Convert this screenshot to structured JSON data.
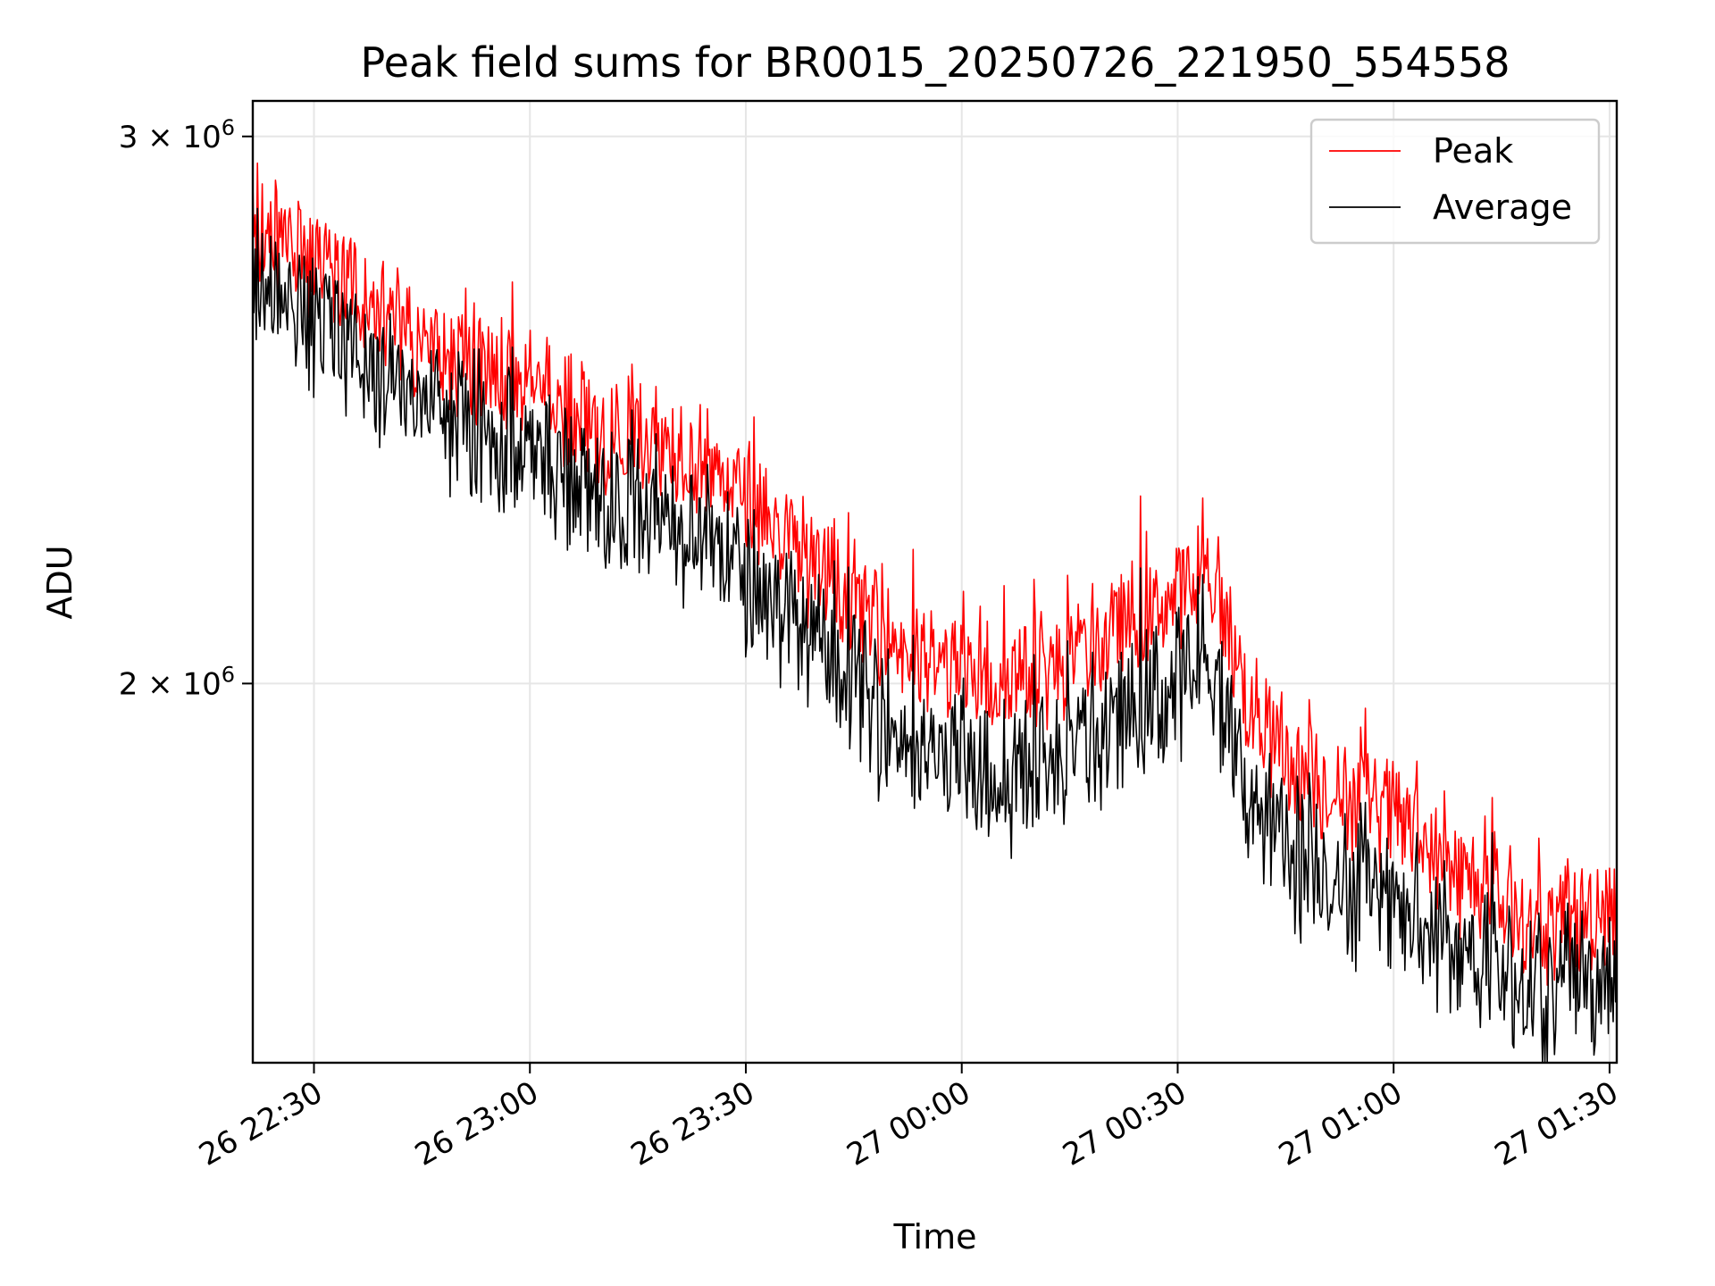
{
  "chart_data": {
    "type": "line",
    "title": "Peak field sums for BR0015_20250726_221950_554558",
    "xlabel": "Time",
    "ylabel": "ADU",
    "x_scale": "time",
    "y_scale": "log",
    "xlim": [
      "2025-07-26 22:21:30",
      "2025-07-27 01:31:00"
    ],
    "ylim": [
      1510000,
      3080000
    ],
    "grid": true,
    "legend": {
      "placement": "top-right",
      "entries": [
        "Peak",
        "Average"
      ]
    },
    "x_ticks": [
      {
        "value": "2025-07-26 22:30",
        "label": "26 22:30"
      },
      {
        "value": "2025-07-26 23:00",
        "label": "26 23:00"
      },
      {
        "value": "2025-07-26 23:30",
        "label": "26 23:30"
      },
      {
        "value": "2025-07-27 00:00",
        "label": "27 00:00"
      },
      {
        "value": "2025-07-27 00:30",
        "label": "27 00:30"
      },
      {
        "value": "2025-07-27 01:00",
        "label": "27 01:00"
      },
      {
        "value": "2025-07-27 01:30",
        "label": "27 01:30"
      }
    ],
    "y_ticks": [
      {
        "value": 2000000,
        "mantissa": "2",
        "exponent": "6"
      },
      {
        "value": 3000000,
        "mantissa": "3",
        "exponent": "6"
      }
    ],
    "x": [
      "2025-07-26 22:21:30",
      "2025-07-26 22:25",
      "2025-07-26 22:30",
      "2025-07-26 22:35",
      "2025-07-26 22:40",
      "2025-07-26 22:45",
      "2025-07-26 22:50",
      "2025-07-26 22:55",
      "2025-07-26 23:00",
      "2025-07-26 23:05",
      "2025-07-26 23:10",
      "2025-07-26 23:15",
      "2025-07-26 23:20",
      "2025-07-26 23:25",
      "2025-07-26 23:30",
      "2025-07-26 23:35",
      "2025-07-26 23:40",
      "2025-07-26 23:45",
      "2025-07-26 23:50",
      "2025-07-26 23:55",
      "2025-07-27 00:00",
      "2025-07-27 00:05",
      "2025-07-27 00:10",
      "2025-07-27 00:15",
      "2025-07-27 00:20",
      "2025-07-27 00:25",
      "2025-07-27 00:30",
      "2025-07-27 00:35",
      "2025-07-27 00:40",
      "2025-07-27 00:45",
      "2025-07-27 00:50",
      "2025-07-27 00:55",
      "2025-07-27 01:00",
      "2025-07-27 01:05",
      "2025-07-27 01:10",
      "2025-07-27 01:15",
      "2025-07-27 01:20",
      "2025-07-27 01:25",
      "2025-07-27 01:31"
    ],
    "series": [
      {
        "name": "Peak",
        "color": "#ff0000",
        "values": [
          2800000,
          2780000,
          2720000,
          2680000,
          2620000,
          2560000,
          2540000,
          2520000,
          2500000,
          2440000,
          2380000,
          2400000,
          2380000,
          2340000,
          2300000,
          2230000,
          2160000,
          2120000,
          2060000,
          2020000,
          2010000,
          2000000,
          2010000,
          2020000,
          2060000,
          2100000,
          2130000,
          2150000,
          1960000,
          1880000,
          1850000,
          1830000,
          1810000,
          1760000,
          1720000,
          1690000,
          1660000,
          1670000,
          1700000
        ]
      },
      {
        "name": "Average",
        "color": "#000000",
        "values": [
          2700000,
          2650000,
          2600000,
          2560000,
          2500000,
          2450000,
          2420000,
          2400000,
          2370000,
          2320000,
          2270000,
          2280000,
          2260000,
          2220000,
          2170000,
          2100000,
          2040000,
          1990000,
          1930000,
          1880000,
          1870000,
          1860000,
          1870000,
          1880000,
          1920000,
          1960000,
          1990000,
          2010000,
          1840000,
          1760000,
          1740000,
          1710000,
          1690000,
          1650000,
          1620000,
          1600000,
          1580000,
          1590000,
          1610000
        ]
      }
    ]
  }
}
